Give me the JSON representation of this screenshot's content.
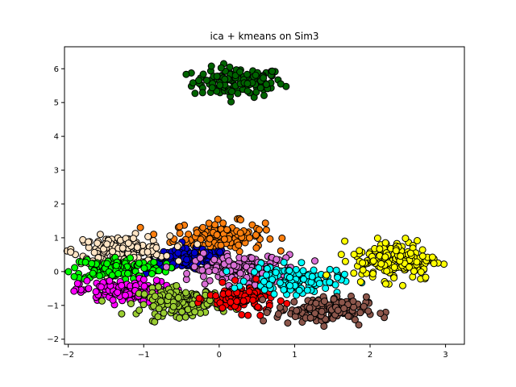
{
  "chart_data": {
    "type": "scatter",
    "title": "ica + kmeans on Sim3",
    "xlabel": "",
    "ylabel": "",
    "xlim": [
      -2.05,
      3.25
    ],
    "ylim": [
      -2.15,
      6.65
    ],
    "x_ticks": [
      -2,
      -1,
      0,
      1,
      2,
      3
    ],
    "y_ticks": [
      -2,
      -1,
      0,
      1,
      2,
      3,
      4,
      5,
      6
    ],
    "x_tick_labels": [
      "−2",
      "−1",
      "0",
      "1",
      "2",
      "3"
    ],
    "y_tick_labels": [
      "−2",
      "−1",
      "0",
      "1",
      "2",
      "3",
      "4",
      "5",
      "6"
    ],
    "grid": false,
    "legend": "none",
    "marker_edge_color": "#000000",
    "clusters": [
      {
        "color": "#006400",
        "center": [
          0.25,
          5.6
        ],
        "spread": [
          0.3,
          0.22
        ],
        "count": 130
      },
      {
        "color": "#ff7f0e",
        "center": [
          0.0,
          1.05
        ],
        "spread": [
          0.3,
          0.22
        ],
        "count": 160
      },
      {
        "color": "#0000cd",
        "center": [
          -0.38,
          0.35
        ],
        "spread": [
          0.26,
          0.16
        ],
        "count": 160
      },
      {
        "color": "#ffe4c4",
        "center": [
          -1.3,
          0.65
        ],
        "spread": [
          0.32,
          0.2
        ],
        "count": 150
      },
      {
        "color": "#00ff00",
        "center": [
          -1.35,
          0.1
        ],
        "spread": [
          0.3,
          0.17
        ],
        "count": 130
      },
      {
        "color": "#ff00ff",
        "center": [
          -1.25,
          -0.6
        ],
        "spread": [
          0.3,
          0.17
        ],
        "count": 150
      },
      {
        "color": "#da70d6",
        "center": [
          0.35,
          0.05
        ],
        "spread": [
          0.35,
          0.22
        ],
        "count": 170
      },
      {
        "color": "#9acd32",
        "center": [
          -0.5,
          -0.9
        ],
        "spread": [
          0.28,
          0.2
        ],
        "count": 150
      },
      {
        "color": "#ff0000",
        "center": [
          0.3,
          -0.8
        ],
        "spread": [
          0.22,
          0.2
        ],
        "count": 110
      },
      {
        "color": "#00ffff",
        "center": [
          1.0,
          -0.25
        ],
        "spread": [
          0.3,
          0.2
        ],
        "count": 130
      },
      {
        "color": "#8c564b",
        "center": [
          1.35,
          -1.15
        ],
        "spread": [
          0.3,
          0.2
        ],
        "count": 150
      },
      {
        "color": "#ffff00",
        "center": [
          2.35,
          0.35
        ],
        "spread": [
          0.28,
          0.3
        ],
        "count": 170
      }
    ]
  }
}
